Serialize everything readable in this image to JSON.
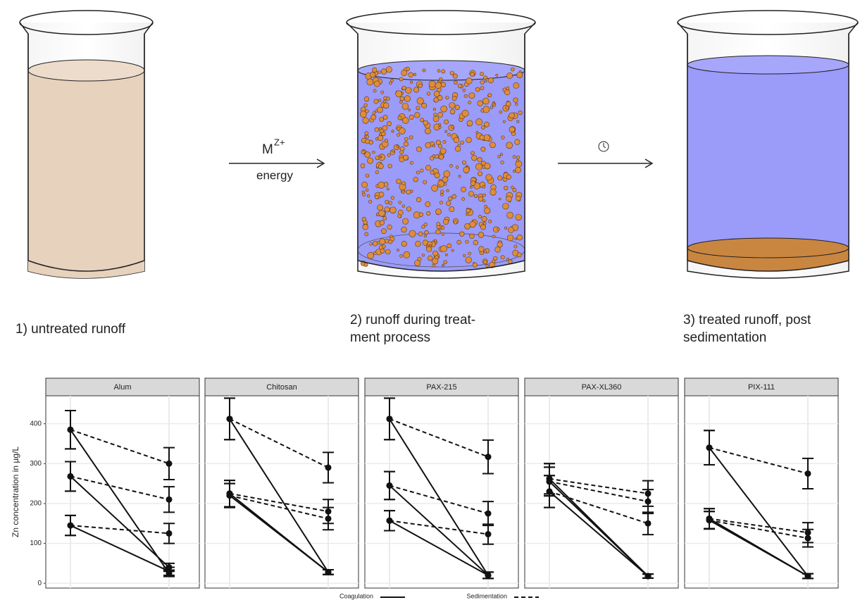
{
  "diagram": {
    "reagent": "M",
    "reagent_charge": "Z+",
    "energy": "energy",
    "steps": [
      {
        "label_lines": [
          "1) untreated runoff"
        ]
      },
      {
        "label_lines": [
          "2) runoff during treat-",
          "ment process"
        ]
      },
      {
        "label_lines": [
          "3) treated runoff, post",
          "sedimentation"
        ]
      }
    ]
  },
  "chart_data": [
    {
      "type": "line",
      "title": "Alum",
      "ylabel": "Zn concentration in  µg/L",
      "categories": [
        null,
        null
      ],
      "ylim": [
        -12,
        470
      ],
      "yticks": [
        0,
        100,
        200,
        300,
        400
      ],
      "grid": true,
      "series": [
        {
          "name": "Coagulation",
          "color": "#111111",
          "dash": false,
          "values": [
            385,
            25
          ],
          "errors": [
            48,
            8
          ]
        },
        {
          "name": "Sedimentation",
          "color": "#111111",
          "dash": true,
          "values": [
            385,
            300
          ],
          "errors": [
            48,
            40
          ]
        },
        {
          "name": "Coagulation",
          "color": "#111111",
          "dash": false,
          "values": [
            268,
            40
          ],
          "errors": [
            37,
            10
          ]
        },
        {
          "name": "Sedimentation",
          "color": "#111111",
          "dash": true,
          "values": [
            268,
            210
          ],
          "errors": [
            37,
            32
          ]
        },
        {
          "name": "Coagulation",
          "color": "#111111",
          "dash": false,
          "values": [
            145,
            30
          ],
          "errors": [
            25,
            10
          ]
        },
        {
          "name": "Sedimentation",
          "color": "#111111",
          "dash": true,
          "values": [
            145,
            125
          ],
          "errors": [
            25,
            25
          ]
        }
      ]
    },
    {
      "type": "line",
      "title": "Chitosan",
      "categories": [
        null,
        null
      ],
      "ylim": [
        -12,
        470
      ],
      "yticks": [
        0,
        100,
        200,
        300,
        400
      ],
      "grid": true,
      "series": [
        {
          "name": "Coagulation",
          "color": "#111111",
          "dash": false,
          "values": [
            412,
            28
          ],
          "errors": [
            52,
            6
          ]
        },
        {
          "name": "Sedimentation",
          "color": "#111111",
          "dash": true,
          "values": [
            412,
            290
          ],
          "errors": [
            52,
            38
          ]
        },
        {
          "name": "Coagulation",
          "color": "#111111",
          "dash": false,
          "values": [
            225,
            28
          ],
          "errors": [
            33,
            6
          ]
        },
        {
          "name": "Sedimentation",
          "color": "#111111",
          "dash": true,
          "values": [
            225,
            180
          ],
          "errors": [
            33,
            30
          ]
        },
        {
          "name": "Coagulation",
          "color": "#111111",
          "dash": false,
          "values": [
            220,
            28
          ],
          "errors": [
            30,
            6
          ]
        },
        {
          "name": "Sedimentation",
          "color": "#111111",
          "dash": true,
          "values": [
            220,
            162
          ],
          "errors": [
            30,
            28
          ]
        }
      ]
    },
    {
      "type": "line",
      "title": "PAX-215",
      "categories": [
        null,
        null
      ],
      "ylim": [
        -12,
        470
      ],
      "yticks": [
        0,
        100,
        200,
        300,
        400
      ],
      "grid": true,
      "series": [
        {
          "name": "Coagulation",
          "color": "#111111",
          "dash": false,
          "values": [
            412,
            20
          ],
          "errors": [
            52,
            8
          ]
        },
        {
          "name": "Sedimentation",
          "color": "#111111",
          "dash": true,
          "values": [
            412,
            317
          ],
          "errors": [
            52,
            42
          ]
        },
        {
          "name": "Coagulation",
          "color": "#111111",
          "dash": false,
          "values": [
            245,
            20
          ],
          "errors": [
            35,
            8
          ]
        },
        {
          "name": "Sedimentation",
          "color": "#111111",
          "dash": true,
          "values": [
            245,
            175
          ],
          "errors": [
            35,
            30
          ]
        },
        {
          "name": "Coagulation",
          "color": "#111111",
          "dash": false,
          "values": [
            157,
            20
          ],
          "errors": [
            25,
            8
          ]
        },
        {
          "name": "Sedimentation",
          "color": "#111111",
          "dash": true,
          "values": [
            157,
            123
          ],
          "errors": [
            25,
            25
          ]
        }
      ]
    },
    {
      "type": "line",
      "title": "PAX-XL360",
      "categories": [
        null,
        null
      ],
      "ylim": [
        -12,
        470
      ],
      "yticks": [
        0,
        100,
        200,
        300,
        400
      ],
      "grid": true,
      "series": [
        {
          "name": "Coagulation",
          "color": "#111111",
          "dash": false,
          "values": [
            262,
            18
          ],
          "errors": [
            38,
            5
          ]
        },
        {
          "name": "Sedimentation",
          "color": "#111111",
          "dash": true,
          "values": [
            262,
            225
          ],
          "errors": [
            38,
            32
          ]
        },
        {
          "name": "Coagulation",
          "color": "#111111",
          "dash": false,
          "values": [
            255,
            18
          ],
          "errors": [
            36,
            5
          ]
        },
        {
          "name": "Sedimentation",
          "color": "#111111",
          "dash": true,
          "values": [
            255,
            205
          ],
          "errors": [
            36,
            30
          ]
        },
        {
          "name": "Coagulation",
          "color": "#111111",
          "dash": false,
          "values": [
            230,
            18
          ],
          "errors": [
            40,
            5
          ]
        },
        {
          "name": "Sedimentation",
          "color": "#111111",
          "dash": true,
          "values": [
            230,
            150
          ],
          "errors": [
            40,
            28
          ]
        }
      ]
    },
    {
      "type": "line",
      "title": "PIX-111",
      "categories": [
        null,
        null
      ],
      "ylim": [
        -12,
        470
      ],
      "yticks": [
        0,
        100,
        200,
        300,
        400
      ],
      "grid": true,
      "series": [
        {
          "name": "Coagulation",
          "color": "#111111",
          "dash": false,
          "values": [
            340,
            18
          ],
          "errors": [
            43,
            6
          ]
        },
        {
          "name": "Sedimentation",
          "color": "#111111",
          "dash": true,
          "values": [
            340,
            275
          ],
          "errors": [
            43,
            38
          ]
        },
        {
          "name": "Coagulation",
          "color": "#111111",
          "dash": false,
          "values": [
            162,
            18
          ],
          "errors": [
            25,
            6
          ]
        },
        {
          "name": "Sedimentation",
          "color": "#111111",
          "dash": true,
          "values": [
            162,
            127
          ],
          "errors": [
            25,
            25
          ]
        },
        {
          "name": "Coagulation",
          "color": "#111111",
          "dash": false,
          "values": [
            158,
            18
          ],
          "errors": [
            22,
            6
          ]
        },
        {
          "name": "Sedimentation",
          "color": "#111111",
          "dash": true,
          "values": [
            158,
            113
          ],
          "errors": [
            22,
            22
          ]
        }
      ]
    }
  ]
}
